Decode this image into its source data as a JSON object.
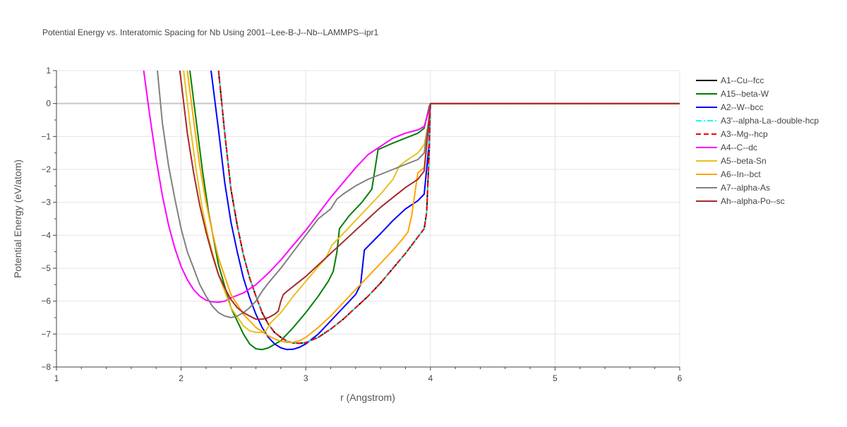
{
  "chart_data": {
    "type": "line",
    "title": "Potential Energy vs. Interatomic Spacing for Nb Using 2001--Lee-B-J--Nb--LAMMPS--ipr1",
    "xlabel": "r (Angstrom)",
    "ylabel": "Potential Energy (eV/atom)",
    "xlim": [
      1,
      6
    ],
    "ylim": [
      -8,
      1
    ],
    "xticks": [
      1,
      2,
      3,
      4,
      5,
      6
    ],
    "yticks": [
      1,
      0,
      -1,
      -2,
      -3,
      -4,
      -5,
      -6,
      -7,
      -8
    ],
    "grid": true,
    "legend_position": "right",
    "series": [
      {
        "name": "A1--Cu--fcc",
        "color": "#000000",
        "dash": "solid",
        "x": [
          2.3,
          2.35,
          2.4,
          2.45,
          2.5,
          2.55,
          2.6,
          2.65,
          2.7,
          2.75,
          2.8,
          2.85,
          2.9,
          2.95,
          3.0,
          3.1,
          3.2,
          3.3,
          3.4,
          3.5,
          3.6,
          3.7,
          3.8,
          3.9,
          3.95,
          3.97,
          3.99,
          4.0,
          4.5,
          5.0,
          6.0
        ],
        "y": [
          1.0,
          -0.9,
          -2.6,
          -3.7,
          -4.6,
          -5.3,
          -5.85,
          -6.35,
          -6.7,
          -6.95,
          -7.1,
          -7.22,
          -7.27,
          -7.28,
          -7.26,
          -7.1,
          -6.85,
          -6.55,
          -6.2,
          -5.85,
          -5.45,
          -5.0,
          -4.55,
          -4.05,
          -3.8,
          -3.3,
          -1.5,
          0,
          0,
          0,
          0
        ]
      },
      {
        "name": "A15--beta-W",
        "color": "#008000",
        "dash": "solid",
        "x": [
          2.07,
          2.12,
          2.17,
          2.22,
          2.3,
          2.4,
          2.5,
          2.55,
          2.6,
          2.65,
          2.7,
          2.8,
          2.9,
          3.0,
          3.1,
          3.18,
          3.22,
          3.25,
          3.27,
          3.35,
          3.45,
          3.53,
          3.58,
          3.7,
          3.8,
          3.9,
          3.95,
          3.99,
          4.0,
          6.0
        ],
        "y": [
          1.0,
          -0.5,
          -2.0,
          -3.3,
          -4.9,
          -6.2,
          -7.0,
          -7.3,
          -7.45,
          -7.47,
          -7.42,
          -7.2,
          -6.8,
          -6.35,
          -5.85,
          -5.4,
          -5.1,
          -4.5,
          -3.8,
          -3.4,
          -3.0,
          -2.6,
          -1.4,
          -1.2,
          -1.05,
          -0.9,
          -0.75,
          -0.1,
          0,
          0
        ]
      },
      {
        "name": "A2--W--bcc",
        "color": "#0000ff",
        "dash": "solid",
        "x": [
          2.24,
          2.3,
          2.35,
          2.4,
          2.45,
          2.5,
          2.55,
          2.6,
          2.65,
          2.7,
          2.75,
          2.8,
          2.85,
          2.9,
          2.95,
          3.0,
          3.1,
          3.2,
          3.3,
          3.4,
          3.44,
          3.47,
          3.6,
          3.7,
          3.8,
          3.9,
          3.95,
          3.99,
          4.0,
          6.0
        ],
        "y": [
          1.0,
          -0.8,
          -2.4,
          -3.6,
          -4.5,
          -5.3,
          -5.9,
          -6.4,
          -6.8,
          -7.1,
          -7.3,
          -7.42,
          -7.47,
          -7.46,
          -7.4,
          -7.3,
          -7.0,
          -6.6,
          -6.2,
          -5.8,
          -5.5,
          -4.45,
          -3.95,
          -3.55,
          -3.2,
          -2.95,
          -2.75,
          -1.2,
          0,
          0
        ]
      },
      {
        "name": "A3'--alpha-La--double-hcp",
        "color": "#00ffff",
        "dash": "dashdot",
        "x": [
          2.3,
          2.35,
          2.4,
          2.45,
          2.5,
          2.55,
          2.6,
          2.65,
          2.7,
          2.75,
          2.8,
          2.85,
          2.9,
          2.95,
          3.0,
          3.1,
          3.2,
          3.3,
          3.4,
          3.5,
          3.6,
          3.7,
          3.8,
          3.9,
          3.95,
          3.97,
          3.99,
          4.0,
          6.0
        ],
        "y": [
          1.0,
          -0.9,
          -2.6,
          -3.7,
          -4.6,
          -5.3,
          -5.85,
          -6.35,
          -6.7,
          -6.95,
          -7.1,
          -7.22,
          -7.27,
          -7.28,
          -7.26,
          -7.1,
          -6.85,
          -6.55,
          -6.2,
          -5.85,
          -5.45,
          -5.0,
          -4.55,
          -4.05,
          -3.8,
          -3.3,
          -1.5,
          0,
          0
        ]
      },
      {
        "name": "A3--Mg--hcp",
        "color": "#ff0000",
        "dash": "dash",
        "x": [
          2.3,
          2.35,
          2.4,
          2.45,
          2.5,
          2.55,
          2.6,
          2.65,
          2.7,
          2.75,
          2.8,
          2.85,
          2.9,
          2.95,
          3.0,
          3.1,
          3.2,
          3.3,
          3.4,
          3.5,
          3.6,
          3.7,
          3.8,
          3.9,
          3.95,
          3.97,
          3.99,
          4.0,
          6.0
        ],
        "y": [
          1.0,
          -0.9,
          -2.6,
          -3.7,
          -4.6,
          -5.3,
          -5.85,
          -6.35,
          -6.7,
          -6.95,
          -7.1,
          -7.22,
          -7.27,
          -7.28,
          -7.26,
          -7.1,
          -6.85,
          -6.55,
          -6.2,
          -5.85,
          -5.45,
          -5.0,
          -4.55,
          -4.05,
          -3.8,
          -3.3,
          -1.5,
          0,
          0
        ]
      },
      {
        "name": "A4--C--dc",
        "color": "#ff00ff",
        "dash": "solid",
        "x": [
          1.7,
          1.75,
          1.8,
          1.85,
          1.9,
          1.95,
          2.0,
          2.05,
          2.1,
          2.15,
          2.2,
          2.25,
          2.3,
          2.35,
          2.4,
          2.5,
          2.6,
          2.7,
          2.8,
          2.9,
          3.0,
          3.1,
          3.2,
          3.3,
          3.4,
          3.5,
          3.58,
          3.7,
          3.8,
          3.9,
          3.95,
          3.98,
          4.0,
          6.0
        ],
        "y": [
          1.0,
          -0.4,
          -1.7,
          -2.8,
          -3.7,
          -4.4,
          -4.95,
          -5.35,
          -5.65,
          -5.85,
          -5.97,
          -6.02,
          -6.03,
          -6.0,
          -5.9,
          -5.75,
          -5.5,
          -5.15,
          -4.75,
          -4.3,
          -3.85,
          -3.35,
          -2.85,
          -2.4,
          -1.95,
          -1.55,
          -1.35,
          -1.05,
          -0.9,
          -0.8,
          -0.7,
          -0.3,
          0,
          0
        ]
      },
      {
        "name": "A5--beta-Sn",
        "color": "#e6c31e",
        "dash": "solid",
        "x": [
          2.02,
          2.07,
          2.12,
          2.17,
          2.22,
          2.3,
          2.4,
          2.5,
          2.55,
          2.6,
          2.65,
          2.68,
          2.72,
          2.8,
          2.9,
          3.0,
          3.1,
          3.16,
          3.21,
          3.3,
          3.4,
          3.5,
          3.6,
          3.7,
          3.75,
          3.8,
          3.9,
          3.95,
          3.99,
          4.0,
          6.0
        ],
        "y": [
          1.0,
          -0.6,
          -2.0,
          -3.2,
          -4.1,
          -5.2,
          -6.2,
          -6.75,
          -6.9,
          -6.95,
          -6.95,
          -6.9,
          -6.65,
          -6.35,
          -5.85,
          -5.4,
          -4.95,
          -4.7,
          -4.3,
          -3.95,
          -3.55,
          -3.15,
          -2.75,
          -2.3,
          -1.9,
          -1.75,
          -1.5,
          -1.25,
          -0.5,
          0,
          0
        ]
      },
      {
        "name": "A6--In--bct",
        "color": "#ffa500",
        "dash": "solid",
        "x": [
          2.05,
          2.1,
          2.15,
          2.2,
          2.25,
          2.3,
          2.4,
          2.5,
          2.6,
          2.7,
          2.75,
          2.8,
          2.85,
          2.9,
          2.95,
          3.0,
          3.1,
          3.2,
          3.3,
          3.4,
          3.5,
          3.6,
          3.7,
          3.78,
          3.82,
          3.85,
          3.88,
          3.9,
          3.95,
          3.99,
          4.0,
          6.0
        ],
        "y": [
          1.0,
          -0.5,
          -1.9,
          -3.0,
          -3.9,
          -4.7,
          -5.8,
          -6.4,
          -6.8,
          -7.05,
          -7.15,
          -7.22,
          -7.25,
          -7.25,
          -7.2,
          -7.1,
          -6.8,
          -6.45,
          -6.05,
          -5.65,
          -5.25,
          -4.85,
          -4.45,
          -4.1,
          -3.9,
          -3.4,
          -2.6,
          -2.1,
          -1.95,
          -0.5,
          0,
          0
        ]
      },
      {
        "name": "A7--alpha-As",
        "color": "#808080",
        "dash": "solid",
        "x": [
          1.81,
          1.85,
          1.9,
          1.95,
          2.0,
          2.05,
          2.1,
          2.15,
          2.2,
          2.25,
          2.3,
          2.35,
          2.4,
          2.45,
          2.5,
          2.55,
          2.6,
          2.65,
          2.7,
          2.8,
          2.9,
          3.0,
          3.1,
          3.2,
          3.25,
          3.3,
          3.4,
          3.5,
          3.6,
          3.7,
          3.8,
          3.9,
          3.95,
          3.99,
          4.0,
          6.0
        ],
        "y": [
          1.0,
          -0.6,
          -1.9,
          -2.9,
          -3.8,
          -4.5,
          -5.0,
          -5.5,
          -5.85,
          -6.15,
          -6.35,
          -6.45,
          -6.5,
          -6.45,
          -6.35,
          -6.2,
          -6.0,
          -5.7,
          -5.45,
          -5.0,
          -4.5,
          -4.0,
          -3.5,
          -3.2,
          -2.9,
          -2.75,
          -2.5,
          -2.3,
          -2.15,
          -2.0,
          -1.85,
          -1.7,
          -1.5,
          -0.4,
          0,
          0
        ]
      },
      {
        "name": "Ah--alpha-Po--sc",
        "color": "#a52a2a",
        "dash": "solid",
        "x": [
          1.99,
          2.05,
          2.1,
          2.15,
          2.2,
          2.25,
          2.3,
          2.35,
          2.4,
          2.45,
          2.5,
          2.55,
          2.6,
          2.65,
          2.7,
          2.75,
          2.78,
          2.8,
          2.82,
          2.85,
          2.9,
          3.0,
          3.1,
          3.2,
          3.3,
          3.4,
          3.5,
          3.6,
          3.7,
          3.8,
          3.9,
          3.95,
          3.99,
          4.0,
          6.0
        ],
        "y": [
          1.0,
          -0.9,
          -2.1,
          -3.1,
          -3.9,
          -4.6,
          -5.2,
          -5.6,
          -5.95,
          -6.2,
          -6.35,
          -6.45,
          -6.55,
          -6.55,
          -6.5,
          -6.4,
          -6.3,
          -6.0,
          -5.8,
          -5.7,
          -5.55,
          -5.25,
          -4.9,
          -4.55,
          -4.2,
          -3.85,
          -3.5,
          -3.15,
          -2.85,
          -2.55,
          -2.3,
          -2.05,
          -0.5,
          0,
          0
        ]
      }
    ]
  }
}
